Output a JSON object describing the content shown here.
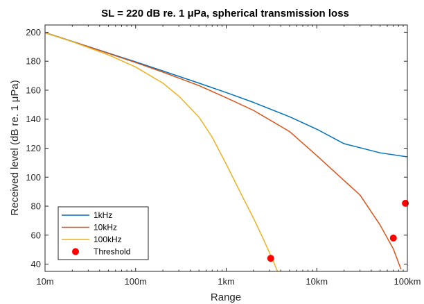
{
  "chart_data": {
    "type": "line",
    "title": "SL = 220 dB re. 1 μPa, spherical transmission loss",
    "xlabel": "Range",
    "ylabel": "Received level (dB re. 1 μPa)",
    "x_scale": "log",
    "xlim_m": [
      10,
      100000
    ],
    "ylim": [
      35,
      205
    ],
    "x_ticks": [
      {
        "value_m": 10,
        "label": "10m"
      },
      {
        "value_m": 100,
        "label": "100m"
      },
      {
        "value_m": 1000,
        "label": "1km"
      },
      {
        "value_m": 10000,
        "label": "10km"
      },
      {
        "value_m": 100000,
        "label": "100km"
      }
    ],
    "y_ticks": [
      40,
      60,
      80,
      100,
      120,
      140,
      160,
      180,
      200
    ],
    "legend_position": "bottom-left",
    "series": [
      {
        "name": "1kHz",
        "color": "#0072BD",
        "points": [
          [
            10,
            199.8
          ],
          [
            20,
            193.7
          ],
          [
            50,
            185.6
          ],
          [
            100,
            179.6
          ],
          [
            200,
            173.3
          ],
          [
            500,
            164.9
          ],
          [
            1000,
            158.4
          ],
          [
            2000,
            151.6
          ],
          [
            5000,
            141.7
          ],
          [
            10000,
            133.1
          ],
          [
            20000,
            123.1
          ],
          [
            50000,
            116.8
          ],
          [
            100000,
            114
          ]
        ]
      },
      {
        "name": "10kHz",
        "color": "#D95319",
        "points": [
          [
            10,
            199.6
          ],
          [
            20,
            193.6
          ],
          [
            50,
            185.4
          ],
          [
            100,
            179.1
          ],
          [
            200,
            172.5
          ],
          [
            500,
            163.2
          ],
          [
            1000,
            154.8
          ],
          [
            2000,
            146.1
          ],
          [
            5000,
            131.5
          ],
          [
            10000,
            114.9
          ],
          [
            20000,
            97.7
          ],
          [
            30000,
            87.7
          ],
          [
            50000,
            67
          ],
          [
            70000,
            50.5
          ],
          [
            85000,
            36.5
          ]
        ]
      },
      {
        "name": "100kHz",
        "color": "#EDB120",
        "points": [
          [
            10,
            199.7
          ],
          [
            20,
            193.5
          ],
          [
            50,
            184.4
          ],
          [
            100,
            176
          ],
          [
            200,
            164.9
          ],
          [
            300,
            155.9
          ],
          [
            500,
            141.5
          ],
          [
            700,
            127.6
          ],
          [
            1000,
            109
          ],
          [
            1500,
            87
          ],
          [
            2000,
            71.7
          ],
          [
            2500,
            58.9
          ],
          [
            3000,
            48
          ],
          [
            3400,
            40.2
          ],
          [
            3700,
            34.7
          ]
        ]
      },
      {
        "name": "Threshold",
        "color": "#FF0000",
        "marker": "circle",
        "points": [
          [
            3100,
            44
          ],
          [
            70000,
            58
          ],
          [
            95000,
            82
          ]
        ]
      }
    ]
  }
}
